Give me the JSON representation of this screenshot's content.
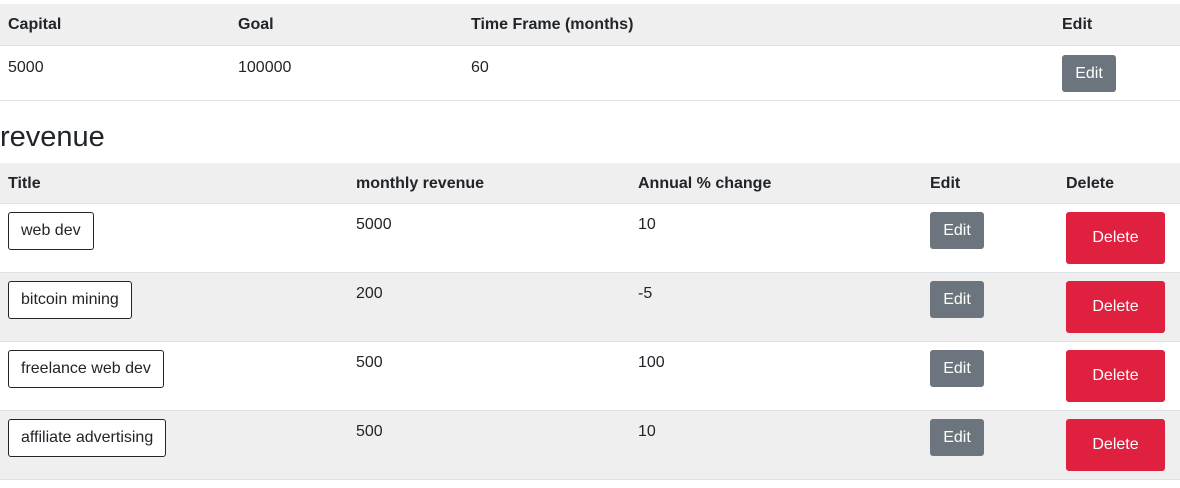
{
  "settings": {
    "headers": [
      "Capital",
      "Goal",
      "Time Frame (months)",
      "Edit"
    ],
    "row": {
      "capital": "5000",
      "goal": "100000",
      "time_frame": "60",
      "edit_label": "Edit"
    }
  },
  "revenue": {
    "heading": "revenue",
    "headers": [
      "Title",
      "monthly revenue",
      "Annual % change",
      "Edit",
      "Delete"
    ],
    "rows": [
      {
        "title": "web dev",
        "monthly": "5000",
        "change": "10",
        "edit_label": "Edit",
        "delete_label": "Delete"
      },
      {
        "title": "bitcoin mining",
        "monthly": "200",
        "change": "-5",
        "edit_label": "Edit",
        "delete_label": "Delete"
      },
      {
        "title": "freelance web dev",
        "monthly": "500",
        "change": "100",
        "edit_label": "Edit",
        "delete_label": "Delete"
      },
      {
        "title": "affiliate advertising",
        "monthly": "500",
        "change": "10",
        "edit_label": "Edit",
        "delete_label": "Delete"
      }
    ]
  },
  "colors": {
    "edit_button": "#6c757d",
    "delete_button": "#e0203f",
    "header_bg": "#efefef"
  }
}
